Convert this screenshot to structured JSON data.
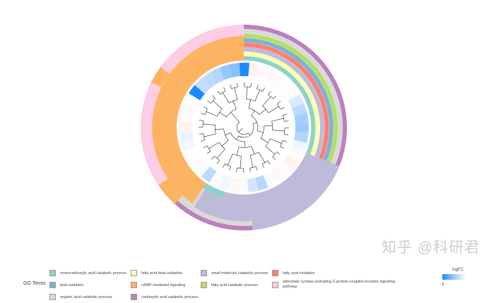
{
  "chart_data": {
    "type": "circular-cluster",
    "legend": {
      "title": "GO Terms",
      "terms": [
        {
          "label": "monocarboxylic acid catabolic process",
          "color": "#8dd3c7"
        },
        {
          "label": "lipid oxidation",
          "color": "#80b1d3"
        },
        {
          "label": "organic acid catabolic process",
          "color": "#d9d9d9"
        },
        {
          "label": "fatty acid beta-oxidation",
          "color": "#ffffb3"
        },
        {
          "label": "cAMP-mediated signaling",
          "color": "#fdb462"
        },
        {
          "label": "carboxylic acid catabolic process",
          "color": "#bc80bd"
        },
        {
          "label": "small molecule catabolic process",
          "color": "#bebada"
        },
        {
          "label": "fatty acid catabolic process",
          "color": "#b3de69"
        },
        {
          "label": "fatty acid oxidation",
          "color": "#fb8072"
        },
        {
          "label": "adenylate cyclase-activating G protein-coupled receptor signaling pathway",
          "color": "#fccde5"
        }
      ]
    },
    "logfc": {
      "title": "logFC",
      "tick": "-3",
      "range": [
        -3,
        0
      ],
      "values": [
        -3,
        0.3,
        0.1,
        0.2,
        0.1,
        0.05,
        0.1,
        -0.5,
        -0.9,
        -1.2,
        -1.3,
        -1.0,
        -0.2,
        0.1,
        0.3,
        0.1,
        0.2,
        -0.1,
        -1.0,
        -0.6,
        -0.1,
        0.2,
        -0.2,
        0.1,
        -0.9,
        -0.1,
        0.1,
        0.05,
        -0.2,
        -0.3,
        0.3,
        0.1,
        0.2,
        0.05,
        -3,
        -0.8,
        -0.9,
        -1.0,
        -1.4,
        -1.6
      ]
    }
  },
  "watermark": "知乎 @科研君"
}
